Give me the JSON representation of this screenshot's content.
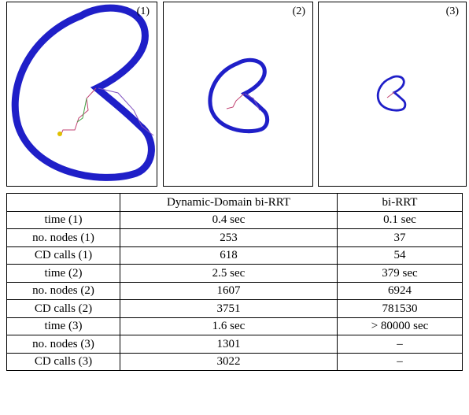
{
  "panels": [
    {
      "label": "(1)"
    },
    {
      "label": "(2)"
    },
    {
      "label": "(3)"
    }
  ],
  "table": {
    "header": [
      "Dynamic-Domain bi-RRT",
      "bi-RRT"
    ],
    "rows": [
      [
        "time (1)",
        "0.4 sec",
        "0.1 sec"
      ],
      [
        "no. nodes (1)",
        "253",
        "37"
      ],
      [
        "CD calls (1)",
        "618",
        "54"
      ],
      [
        "time (2)",
        "2.5 sec",
        "379 sec"
      ],
      [
        "no. nodes (2)",
        "1607",
        "6924"
      ],
      [
        "CD calls (2)",
        "3751",
        "781530"
      ],
      [
        "time (3)",
        "1.6 sec",
        "> 80000 sec"
      ],
      [
        "no. nodes (3)",
        "1301",
        "–"
      ],
      [
        "CD calls (3)",
        "3022",
        "–"
      ]
    ]
  }
}
